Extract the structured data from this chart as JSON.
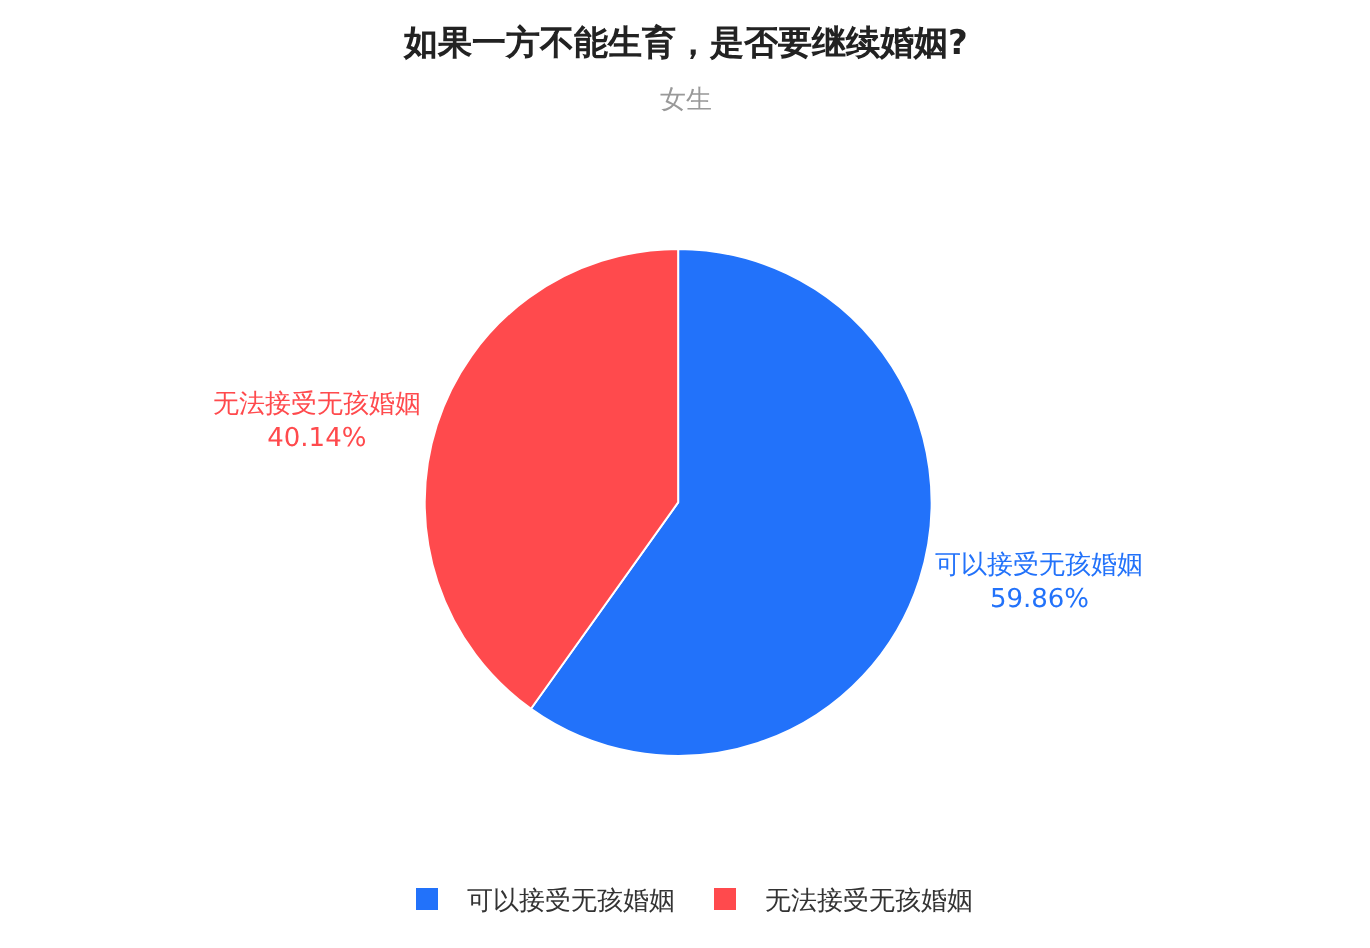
{
  "chart_data": {
    "type": "pie",
    "title": "如果一方不能生育，是否要继续婚姻?",
    "subtitle": "女生",
    "categories": [
      "可以接受无孩婚姻",
      "无法接受无孩婚姻"
    ],
    "values": [
      59.86,
      40.14
    ],
    "value_labels": [
      "59.86%",
      "40.14%"
    ],
    "colors": [
      "#2272fa",
      "#ff4a4d"
    ],
    "legend": "bottom"
  }
}
